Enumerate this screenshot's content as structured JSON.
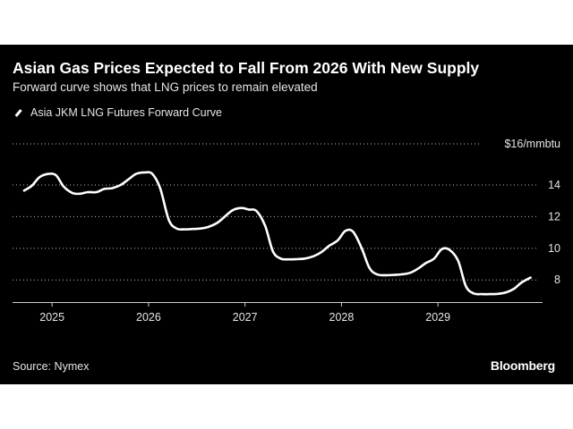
{
  "chart_data": {
    "type": "line",
    "title": "Asian Gas Prices Expected to Fall From 2026 With New Supply",
    "subtitle": "Forward curve shows that LNG prices to remain elevated",
    "ylabel": "$16/mmbtu",
    "ylim": [
      6.6,
      16.6
    ],
    "yticks": [
      8,
      10,
      12,
      14
    ],
    "xlim": [
      2024.59,
      2030.27
    ],
    "xticks": [
      2025,
      2026,
      2027,
      2028,
      2029
    ],
    "xtick_labels": [
      "2025",
      "2026",
      "2027",
      "2028",
      "2029"
    ],
    "grid": true,
    "legend_position": "top-left",
    "series": [
      {
        "name": "Asia JKM LNG Futures Forward Curve",
        "color": "#ffffff",
        "x": [
          2024.71,
          2024.79,
          2024.87,
          2024.96,
          2025.04,
          2025.12,
          2025.21,
          2025.29,
          2025.37,
          2025.46,
          2025.54,
          2025.62,
          2025.71,
          2025.79,
          2025.87,
          2025.96,
          2026.04,
          2026.12,
          2026.21,
          2026.29,
          2026.37,
          2026.46,
          2026.54,
          2026.62,
          2026.71,
          2026.79,
          2026.87,
          2026.96,
          2027.04,
          2027.12,
          2027.21,
          2027.29,
          2027.37,
          2027.46,
          2027.54,
          2027.62,
          2027.71,
          2027.79,
          2027.87,
          2027.96,
          2028.04,
          2028.12,
          2028.21,
          2028.29,
          2028.37,
          2028.46,
          2028.54,
          2028.62,
          2028.71,
          2028.79,
          2028.87,
          2028.96,
          2029.04,
          2029.12,
          2029.21,
          2029.29,
          2029.37,
          2029.46,
          2029.54,
          2029.62,
          2029.71,
          2029.79,
          2029.87,
          2029.96
        ],
        "values": [
          13.65,
          13.95,
          14.5,
          14.7,
          14.62,
          13.9,
          13.5,
          13.45,
          13.55,
          13.55,
          13.75,
          13.8,
          14.0,
          14.35,
          14.7,
          14.8,
          14.7,
          13.8,
          11.8,
          11.25,
          11.2,
          11.22,
          11.25,
          11.35,
          11.6,
          12.0,
          12.4,
          12.55,
          12.45,
          12.35,
          11.4,
          9.8,
          9.35,
          9.3,
          9.32,
          9.35,
          9.5,
          9.75,
          10.15,
          10.5,
          11.1,
          11.05,
          10.0,
          8.75,
          8.35,
          8.3,
          8.32,
          8.35,
          8.45,
          8.7,
          9.05,
          9.35,
          9.95,
          9.9,
          9.2,
          7.6,
          7.15,
          7.1,
          7.1,
          7.12,
          7.22,
          7.45,
          7.85,
          8.15
        ]
      }
    ]
  },
  "source": "Source: Nymex",
  "brand": "Bloomberg"
}
